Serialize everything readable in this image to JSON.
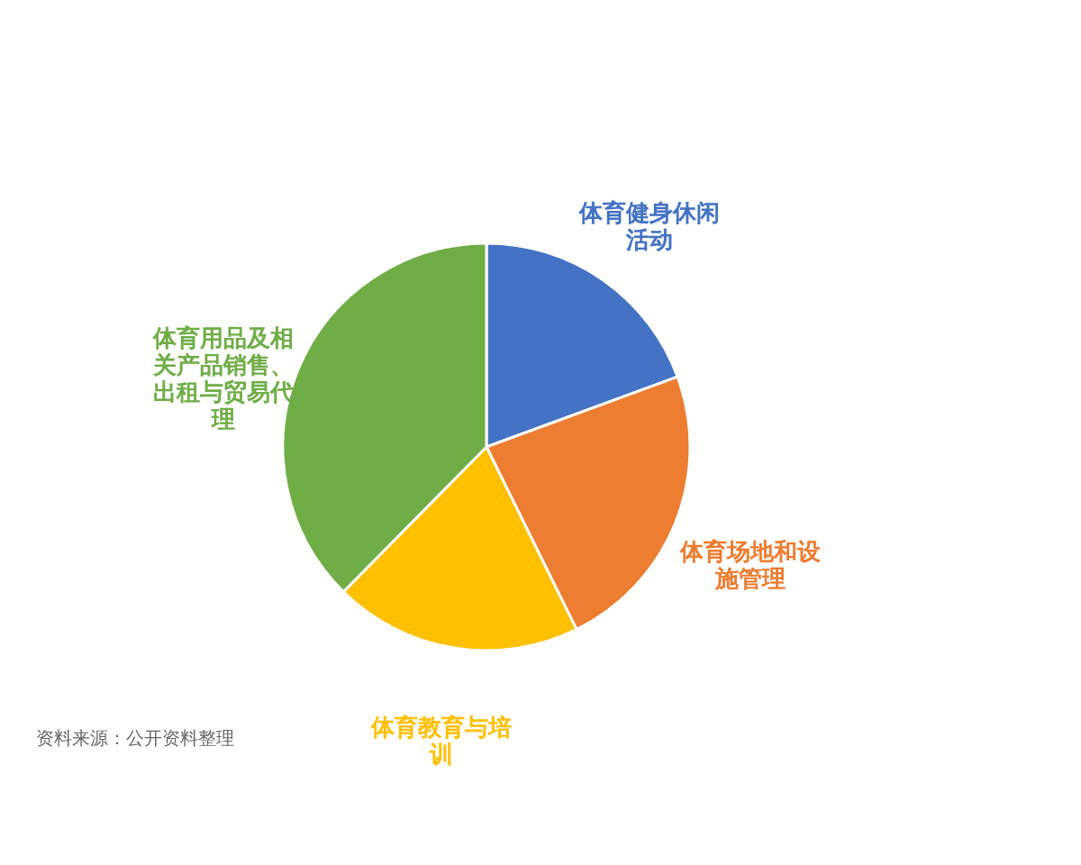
{
  "chart_data": {
    "type": "pie",
    "categories": [
      "体育健身休闲活动",
      "体育场地和设施管理",
      "体育教育与培训",
      "体育用品及相关产品销售、出租与贸易代理"
    ],
    "values": [
      19.4,
      23.3,
      19.7,
      37.6
    ],
    "colors": [
      "#4472c4",
      "#ed7d31",
      "#ffc000",
      "#70ad47"
    ],
    "legend": false,
    "annotations": [
      "资料来源：公开资料整理"
    ]
  }
}
